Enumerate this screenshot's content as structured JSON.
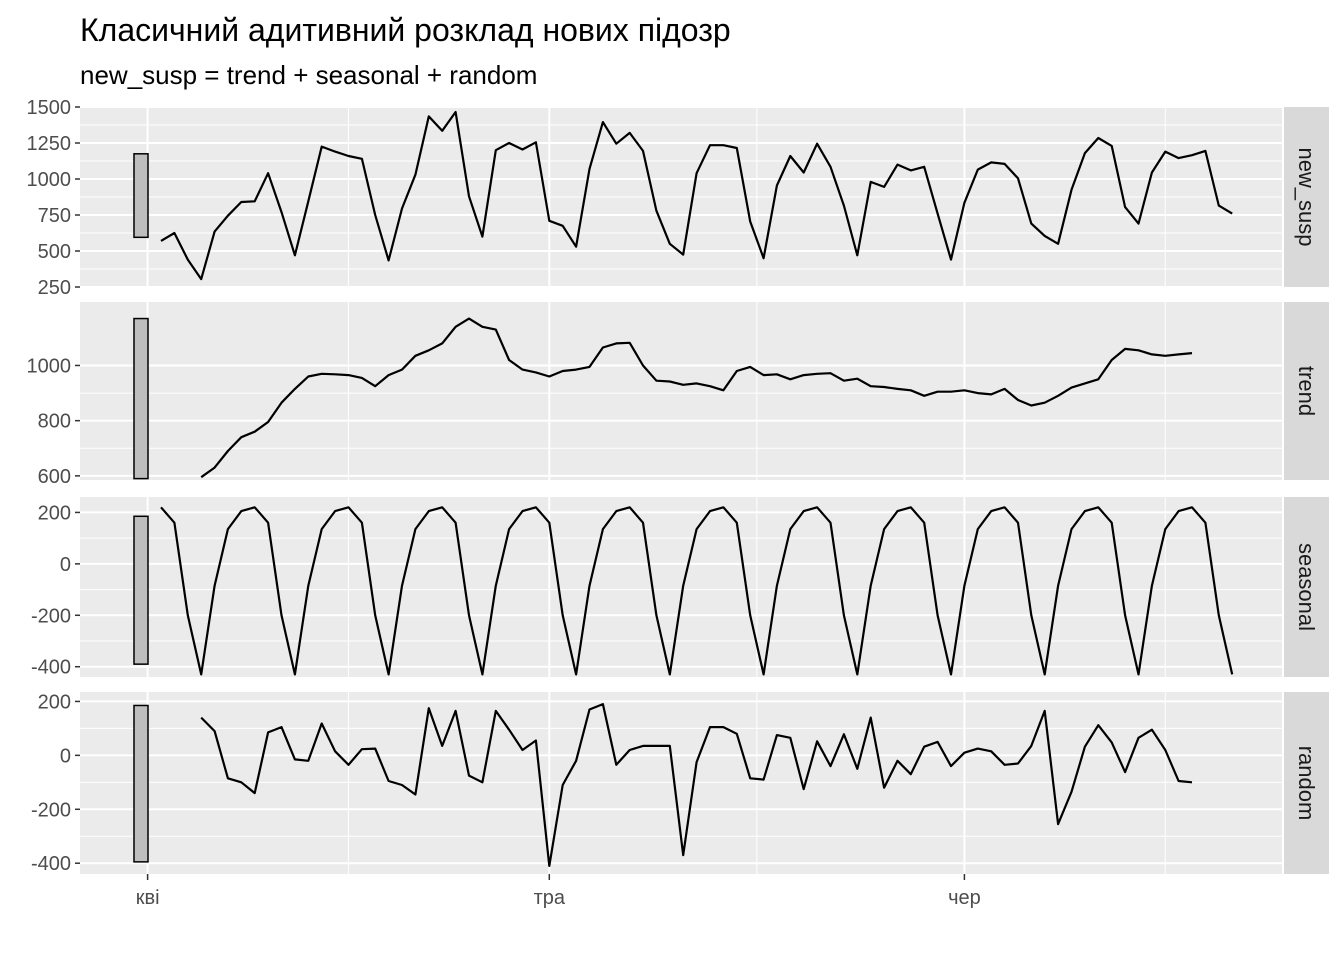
{
  "chart_data": {
    "type": "line",
    "title": "Класичний адитивний розклад нових підозр",
    "subtitle": "new_susp = trend + seasonal + random",
    "x_axis": {
      "start": "2022-04-01",
      "tick_labels": [
        "кві",
        "тра",
        "чер"
      ],
      "tick_dates": [
        "2022-04-01",
        "2022-05-01",
        "2022-06-01"
      ]
    },
    "panels": [
      {
        "name": "new_susp",
        "ylim": [
          250,
          1500
        ],
        "y_ticks": [
          250,
          500,
          750,
          1000,
          1250,
          1500
        ],
        "scale_bar": [
          595,
          1175
        ],
        "values": [
          570,
          625,
          440,
          305,
          635,
          745,
          840,
          845,
          1040,
          770,
          470,
          845,
          1225,
          1190,
          1160,
          1140,
          750,
          435,
          795,
          1030,
          1435,
          1335,
          1465,
          880,
          600,
          1200,
          1250,
          1205,
          1255,
          710,
          675,
          530,
          1070,
          1395,
          1245,
          1320,
          1195,
          780,
          550,
          475,
          1040,
          1235,
          1235,
          1215,
          705,
          450,
          955,
          1160,
          1045,
          1245,
          1085,
          815,
          470,
          980,
          945,
          1100,
          1060,
          1085,
          760,
          440,
          835,
          1065,
          1115,
          1105,
          1005,
          690,
          605,
          550,
          925,
          1180,
          1285,
          1230,
          805,
          690,
          1045,
          1190,
          1145,
          1165,
          1195,
          815,
          760
        ]
      },
      {
        "name": "trend",
        "ylim": [
          585,
          1230
        ],
        "y_ticks": [
          600,
          800,
          1000
        ],
        "scale_bar": [
          590,
          1170
        ],
        "values": [
          null,
          null,
          null,
          595,
          630,
          690,
          740,
          760,
          795,
          865,
          915,
          960,
          970,
          968,
          965,
          955,
          925,
          965,
          985,
          1035,
          1055,
          1080,
          1140,
          1170,
          1140,
          1130,
          1020,
          985,
          975,
          960,
          980,
          985,
          995,
          1065,
          1080,
          1082,
          1000,
          945,
          942,
          930,
          935,
          925,
          910,
          980,
          995,
          965,
          968,
          950,
          965,
          970,
          972,
          945,
          952,
          925,
          922,
          915,
          910,
          890,
          905,
          905,
          910,
          900,
          895,
          915,
          875,
          855,
          865,
          890,
          920,
          935,
          950,
          1020,
          1060,
          1055,
          1040,
          1035,
          1040,
          1045,
          null,
          null,
          null
        ]
      },
      {
        "name": "seasonal",
        "ylim": [
          -440,
          260
        ],
        "y_ticks": [
          -400,
          -200,
          0,
          200
        ],
        "scale_bar": [
          -390,
          185
        ],
        "values": [
          220,
          160,
          -200,
          -430,
          -85,
          135,
          205,
          220,
          160,
          -200,
          -430,
          -85,
          135,
          205,
          220,
          160,
          -200,
          -430,
          -85,
          135,
          205,
          220,
          160,
          -200,
          -430,
          -85,
          135,
          205,
          220,
          160,
          -200,
          -430,
          -85,
          135,
          205,
          220,
          160,
          -200,
          -430,
          -85,
          135,
          205,
          220,
          160,
          -200,
          -430,
          -85,
          135,
          205,
          220,
          160,
          -200,
          -430,
          -85,
          135,
          205,
          220,
          160,
          -200,
          -430,
          -85,
          135,
          205,
          220,
          160,
          -200,
          -430,
          -85,
          135,
          205,
          220,
          160,
          -200,
          -430,
          -85,
          135,
          205,
          220,
          160,
          -200,
          -430
        ]
      },
      {
        "name": "random",
        "ylim": [
          -440,
          235
        ],
        "y_ticks": [
          -400,
          -200,
          0,
          200
        ],
        "scale_bar": [
          -395,
          185
        ],
        "values": [
          null,
          null,
          null,
          140,
          90,
          -85,
          -100,
          -140,
          85,
          105,
          -15,
          -20,
          118,
          15,
          -35,
          23,
          25,
          -95,
          -110,
          -145,
          175,
          35,
          165,
          -75,
          -100,
          165,
          95,
          20,
          55,
          -410,
          -110,
          -20,
          170,
          190,
          -35,
          20,
          35,
          35,
          35,
          -370,
          -25,
          105,
          105,
          80,
          -85,
          -90,
          75,
          65,
          -125,
          52,
          -40,
          78,
          -50,
          140,
          -120,
          -20,
          -70,
          32,
          50,
          -40,
          10,
          25,
          15,
          -35,
          -30,
          35,
          165,
          -255,
          -135,
          32,
          112,
          48,
          -62,
          65,
          95,
          20,
          -95,
          -100,
          null,
          null,
          null
        ]
      }
    ]
  }
}
